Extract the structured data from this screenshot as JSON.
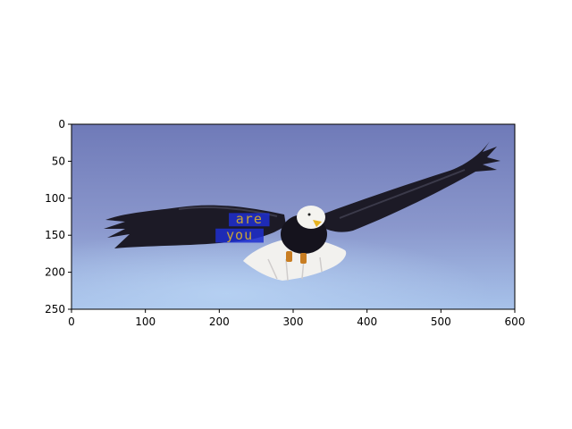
{
  "figure": {
    "background": "#ffffff",
    "image": {
      "description_icon": "bald-eagle-in-flight-image",
      "extent_x": [
        0,
        600
      ],
      "extent_y": [
        250,
        0
      ],
      "sky_colors": [
        "#6f7ab8",
        "#8a97cc",
        "#9eb6e3"
      ]
    },
    "x_axis": {
      "ticks": [
        0,
        100,
        200,
        300,
        400,
        500,
        600
      ],
      "tick_labels": [
        "0",
        "100",
        "200",
        "300",
        "400",
        "500",
        "600"
      ]
    },
    "y_axis": {
      "ticks": [
        0,
        50,
        100,
        150,
        200,
        250
      ],
      "tick_labels": [
        "0",
        "50",
        "100",
        "150",
        "200",
        "250"
      ]
    },
    "overlay_words": [
      {
        "text": "are",
        "x": 213,
        "y": 120,
        "w": 55,
        "h": 18,
        "box_color": "#1f2fd0"
      },
      {
        "text": "you",
        "x": 195,
        "y": 141,
        "w": 65,
        "h": 19,
        "box_color": "#1f2fd0"
      }
    ]
  }
}
